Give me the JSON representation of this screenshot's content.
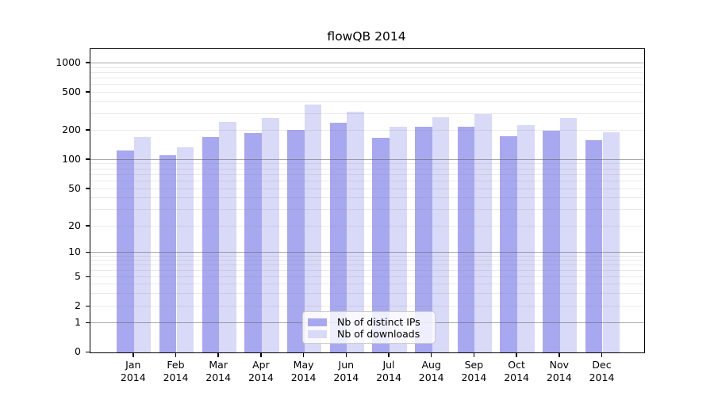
{
  "chart_data": {
    "type": "bar",
    "title": "flowQB 2014",
    "year_label": "2014",
    "categories": [
      "Jan",
      "Feb",
      "Mar",
      "Apr",
      "May",
      "Jun",
      "Jul",
      "Aug",
      "Sep",
      "Oct",
      "Nov",
      "Dec"
    ],
    "series": [
      {
        "name": "Nb of distinct IPs",
        "color": "#a8a8f0",
        "values": [
          125,
          111,
          171,
          188,
          203,
          241,
          170,
          220,
          220,
          176,
          198,
          160
        ]
      },
      {
        "name": "Nb of downloads",
        "color": "#d9d9f8",
        "values": [
          172,
          135,
          248,
          272,
          378,
          315,
          221,
          277,
          299,
          229,
          272,
          191
        ]
      }
    ],
    "yscale": "symlog",
    "yticks": [
      0,
      1,
      2,
      5,
      10,
      20,
      50,
      100,
      200,
      500,
      1000
    ],
    "ylim": [
      0,
      1400
    ],
    "xlabel": "",
    "ylabel": "",
    "grid": true,
    "legend_position": "lower center"
  }
}
